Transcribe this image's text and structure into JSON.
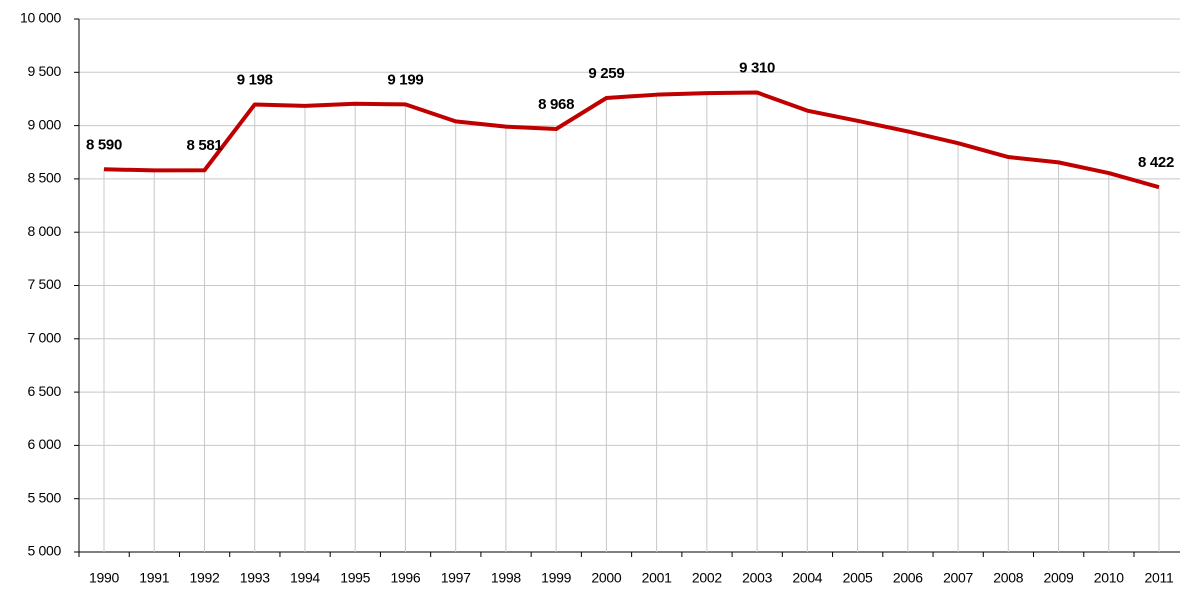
{
  "chart_data": {
    "type": "line",
    "categories": [
      "1990",
      "1991",
      "1992",
      "1993",
      "1994",
      "1995",
      "1996",
      "1997",
      "1998",
      "1999",
      "2000",
      "2001",
      "2002",
      "2003",
      "2004",
      "2005",
      "2006",
      "2007",
      "2008",
      "2009",
      "2010",
      "2011"
    ],
    "series": [
      {
        "name": null,
        "color": "#c00000",
        "values": [
          8590,
          8580,
          8581,
          9198,
          9185,
          9205,
          9199,
          9040,
          8990,
          8968,
          9259,
          9290,
          9305,
          9310,
          9140,
          9045,
          8945,
          8835,
          8705,
          8655,
          8555,
          8422
        ],
        "value_labels": [
          "8 590",
          null,
          "8 581",
          "9 198",
          null,
          null,
          "9 199",
          null,
          null,
          "8 968",
          "9 259",
          null,
          null,
          "9 310",
          null,
          null,
          null,
          null,
          null,
          null,
          null,
          "8 422"
        ]
      }
    ],
    "ylim": [
      5000,
      10000
    ],
    "yticks": [
      {
        "value": 5000,
        "label": "5 000"
      },
      {
        "value": 5500,
        "label": "5 500"
      },
      {
        "value": 6000,
        "label": "6 000"
      },
      {
        "value": 6500,
        "label": "6 500"
      },
      {
        "value": 7000,
        "label": "7 000"
      },
      {
        "value": 7500,
        "label": "7 500"
      },
      {
        "value": 8000,
        "label": "8 000"
      },
      {
        "value": 8500,
        "label": "8 500"
      },
      {
        "value": 9000,
        "label": "9 000"
      },
      {
        "value": 9500,
        "label": "9 500"
      },
      {
        "value": 10000,
        "label": "10 000"
      }
    ],
    "grid": true,
    "drop_lines": true
  }
}
